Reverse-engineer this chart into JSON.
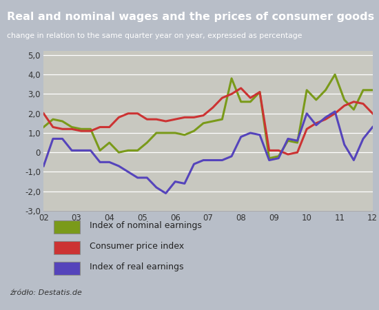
{
  "title": "Real and nominal wages and the prices of consumer goods",
  "subtitle": "change in relation to the same quarter year on year, expressed as percentage",
  "source": "źródło: Destatis.de",
  "title_bg_color": "#1c3f6e",
  "title_text_color": "#ffffff",
  "outer_bg_color": "#b8bec8",
  "plot_bg_color": "#c8c8c0",
  "legend_bg_color": "#d8d8d0",
  "x_labels": [
    "02",
    "03",
    "04",
    "05",
    "06",
    "07",
    "08",
    "09",
    "10",
    "11",
    "12"
  ],
  "ylim": [
    -3.0,
    5.2
  ],
  "yticks": [
    -3.0,
    -2.0,
    -1.0,
    0.0,
    1.0,
    2.0,
    3.0,
    4.0,
    5.0
  ],
  "ytick_labels": [
    "-3,0",
    "-2,0",
    "-1,0",
    "0",
    "1,0",
    "2,0",
    "3,0",
    "4,0",
    "5,0"
  ],
  "nominal_color": "#7a9a1a",
  "cpi_color": "#cc3333",
  "real_color": "#5544bb",
  "nominal_earnings": [
    1.3,
    1.7,
    1.6,
    1.3,
    1.2,
    1.2,
    0.1,
    0.5,
    0.0,
    0.1,
    0.1,
    0.5,
    1.0,
    1.0,
    1.0,
    0.9,
    1.1,
    1.5,
    1.6,
    1.7,
    3.8,
    2.6,
    2.6,
    3.1,
    -0.3,
    -0.2,
    0.6,
    0.5,
    3.2,
    2.7,
    3.2,
    4.0,
    2.7,
    2.2,
    3.2,
    3.2
  ],
  "cpi": [
    2.0,
    1.3,
    1.2,
    1.2,
    1.1,
    1.1,
    1.3,
    1.3,
    1.8,
    2.0,
    2.0,
    1.7,
    1.7,
    1.6,
    1.7,
    1.8,
    1.8,
    1.9,
    2.3,
    2.8,
    3.0,
    3.3,
    2.8,
    3.1,
    0.1,
    0.1,
    -0.1,
    0.0,
    1.2,
    1.5,
    1.7,
    2.0,
    2.4,
    2.6,
    2.5,
    2.0
  ],
  "real_earnings": [
    -0.7,
    0.7,
    0.7,
    0.1,
    0.1,
    0.1,
    -0.5,
    -0.5,
    -0.7,
    -1.0,
    -1.3,
    -1.3,
    -1.8,
    -2.1,
    -1.5,
    -1.6,
    -0.6,
    -0.4,
    -0.4,
    -0.4,
    -0.2,
    0.8,
    1.0,
    0.9,
    -0.4,
    -0.3,
    0.7,
    0.6,
    2.0,
    1.4,
    1.8,
    2.1,
    0.4,
    -0.4,
    0.7,
    1.3
  ],
  "legend_entries": [
    "Index of nominal earnings",
    "Consumer price index",
    "Index of real earnings"
  ],
  "legend_colors": [
    "#7a9a1a",
    "#cc3333",
    "#5544bb"
  ]
}
